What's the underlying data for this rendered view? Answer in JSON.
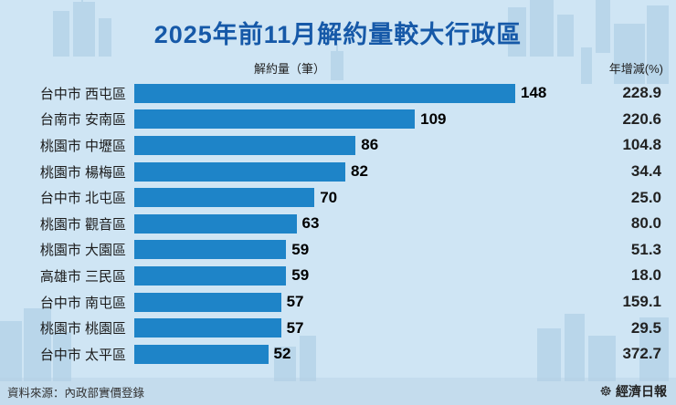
{
  "title": "2025年前11月解約量較大行政區",
  "chart_data": {
    "type": "bar",
    "orientation": "horizontal",
    "title": "2025年前11月解約量較大行政區",
    "value_axis_label": "解約量（筆）",
    "secondary_column_label": "年增減(%)",
    "categories": [
      "台中市 西屯區",
      "台南市 安南區",
      "桃園市 中壢區",
      "桃園市 楊梅區",
      "台中市 北屯區",
      "桃園市 觀音區",
      "桃園市 大園區",
      "高雄市 三民區",
      "台中市 南屯區",
      "桃園市 桃園區",
      "台中市 太平區"
    ],
    "values": [
      148,
      109,
      86,
      82,
      70,
      63,
      59,
      59,
      57,
      57,
      52
    ],
    "yoy_change_pct": [
      "228.9",
      "220.6",
      "104.8",
      "34.4",
      "25.0",
      "80.0",
      "51.3",
      "18.0",
      "159.1",
      "29.5",
      "372.7"
    ],
    "xlim": [
      0,
      148
    ],
    "bar_color": "#1e84c8",
    "grid": false,
    "legend": "none"
  },
  "footer": {
    "source": "資料來源：內政部實價登錄",
    "brand": "經濟日報",
    "brand_icon": "ship-wheel-icon"
  },
  "colors": {
    "background": "#cfe5f4",
    "skyline": "#b9d6ea",
    "title_text": "#1659a8",
    "bar": "#1e84c8",
    "text": "#222222"
  }
}
